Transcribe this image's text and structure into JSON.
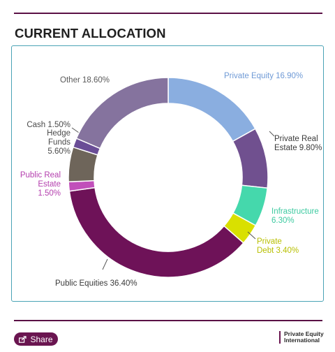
{
  "page": {
    "title": "CURRENT ALLOCATION",
    "share_label": "Share",
    "brand_line1": "Private Equity",
    "brand_line2": "International"
  },
  "chart_data": {
    "type": "pie",
    "variant": "donut",
    "title": "",
    "unit": "%",
    "slices": [
      {
        "label_lines": [
          "Private Equity 16.90%"
        ],
        "value": 16.9,
        "color": "#8aaee0",
        "label_color": "#6f9ad6"
      },
      {
        "label_lines": [
          "Private Real",
          "Estate 9.80%"
        ],
        "value": 9.8,
        "color": "#70508f",
        "label_color": "#3a3a3a"
      },
      {
        "label_lines": [
          "Infrastructure",
          "6.30%"
        ],
        "value": 6.3,
        "color": "#45d8ac",
        "label_color": "#3ccaa0"
      },
      {
        "label_lines": [
          "Private",
          "Debt 3.40%"
        ],
        "value": 3.4,
        "color": "#d9e000",
        "label_color": "#b8bf00"
      },
      {
        "label_lines": [
          "Public Equities 36.40%"
        ],
        "value": 36.4,
        "color": "#6e1258",
        "label_color": "#3a3a3a"
      },
      {
        "label_lines": [
          "Public Real",
          "Estate",
          "1.50%"
        ],
        "value": 1.5,
        "color": "#c14fba",
        "label_color": "#b43fae"
      },
      {
        "label_lines": [
          "Hedge",
          "Funds",
          "5.60%"
        ],
        "value": 5.6,
        "color": "#6e655a",
        "label_color": "#4a4a4a"
      },
      {
        "label_lines": [
          "Cash 1.50%"
        ],
        "value": 1.5,
        "color": "#6a4d96",
        "label_color": "#4a4a4a"
      },
      {
        "label_lines": [
          "Other 18.60%"
        ],
        "value": 18.6,
        "color": "#85739e",
        "label_color": "#5a5a5a"
      }
    ]
  }
}
